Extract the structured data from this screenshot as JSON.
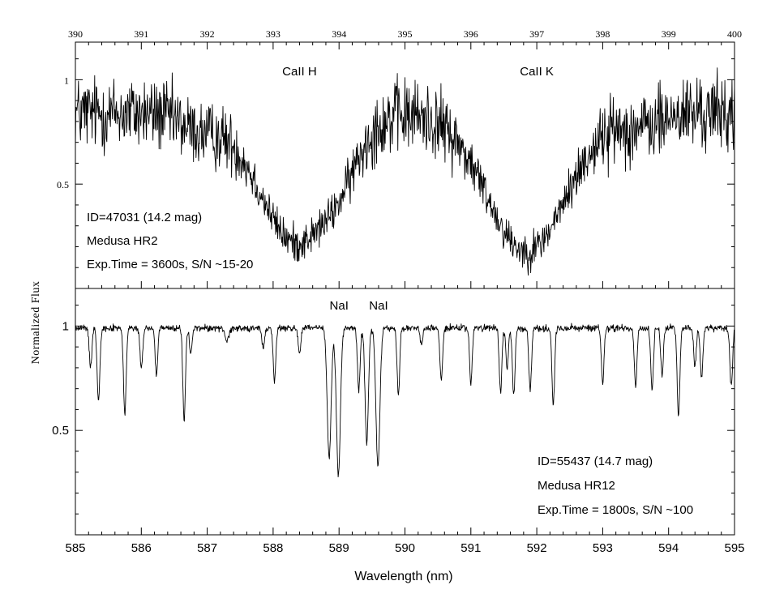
{
  "chart_data": {
    "type": "line",
    "ylabel": "Normalized Flux",
    "xlabel": "Wavelength (nm)",
    "panels": [
      {
        "name": "top",
        "series_name": "",
        "xaxis_position": "top",
        "xlim": [
          390,
          400
        ],
        "ylim": [
          0.0,
          1.18
        ],
        "xticks": [
          "390",
          "391",
          "392",
          "393",
          "394",
          "395",
          "396",
          "397",
          "398",
          "399",
          "400"
        ],
        "yticks": [
          {
            "value": 0.5,
            "label": "0.5"
          },
          {
            "value": 1,
            "label": "1"
          }
        ],
        "line_labels": [
          {
            "text": "CaII H",
            "x": 393.4,
            "y": 1.02
          },
          {
            "text": "CaII K",
            "x": 397.0,
            "y": 1.02
          }
        ],
        "annotations": [
          "ID=47031 (14.2 mag)",
          "Medusa HR2",
          "Exp.Time = 3600s, S/N ~15-20"
        ],
        "annotation_anchor": "bottom-left",
        "continuum": 0.84,
        "noise": 0.09,
        "absorption_lines": [
          {
            "center": 393.35,
            "depth": 0.62,
            "width": 0.55
          },
          {
            "center": 396.85,
            "depth": 0.66,
            "width": 0.6
          },
          {
            "center": 394.05,
            "depth": 0.12,
            "width": 0.25
          },
          {
            "center": 391.9,
            "depth": 0.08,
            "width": 0.3
          },
          {
            "center": 398.6,
            "depth": 0.06,
            "width": 0.3
          }
        ]
      },
      {
        "name": "bottom",
        "series_name": "",
        "xaxis_position": "bottom",
        "xlim": [
          585,
          595
        ],
        "ylim": [
          0.0,
          1.18
        ],
        "xticks": [
          "585",
          "586",
          "587",
          "588",
          "589",
          "590",
          "591",
          "592",
          "593",
          "594",
          "595"
        ],
        "yticks": [
          {
            "value": 0.5,
            "label": "0.5"
          },
          {
            "value": 1,
            "label": "1"
          }
        ],
        "line_labels": [
          {
            "text": "NaI",
            "x": 589.0,
            "y": 1.08
          },
          {
            "text": "NaI",
            "x": 589.6,
            "y": 1.08
          }
        ],
        "annotations": [
          "ID=55437 (14.7 mag)",
          "Medusa HR12",
          "Exp.Time = 1800s, S/N ~100"
        ],
        "annotation_anchor": "bottom-right",
        "continuum": 0.99,
        "noise": 0.008,
        "absorption_lines": [
          {
            "center": 585.23,
            "depth": 0.18,
            "width": 0.02
          },
          {
            "center": 585.35,
            "depth": 0.35,
            "width": 0.02
          },
          {
            "center": 585.75,
            "depth": 0.42,
            "width": 0.02
          },
          {
            "center": 586.0,
            "depth": 0.2,
            "width": 0.02
          },
          {
            "center": 586.23,
            "depth": 0.22,
            "width": 0.02
          },
          {
            "center": 586.65,
            "depth": 0.44,
            "width": 0.02
          },
          {
            "center": 586.75,
            "depth": 0.12,
            "width": 0.02
          },
          {
            "center": 587.3,
            "depth": 0.06,
            "width": 0.03
          },
          {
            "center": 587.85,
            "depth": 0.1,
            "width": 0.02
          },
          {
            "center": 588.02,
            "depth": 0.25,
            "width": 0.02
          },
          {
            "center": 588.4,
            "depth": 0.12,
            "width": 0.02
          },
          {
            "center": 588.85,
            "depth": 0.62,
            "width": 0.03
          },
          {
            "center": 588.99,
            "depth": 0.7,
            "width": 0.03
          },
          {
            "center": 589.3,
            "depth": 0.3,
            "width": 0.02
          },
          {
            "center": 589.42,
            "depth": 0.55,
            "width": 0.025
          },
          {
            "center": 589.59,
            "depth": 0.66,
            "width": 0.03
          },
          {
            "center": 589.9,
            "depth": 0.32,
            "width": 0.02
          },
          {
            "center": 590.25,
            "depth": 0.08,
            "width": 0.02
          },
          {
            "center": 590.55,
            "depth": 0.25,
            "width": 0.02
          },
          {
            "center": 591.0,
            "depth": 0.26,
            "width": 0.02
          },
          {
            "center": 591.45,
            "depth": 0.3,
            "width": 0.02
          },
          {
            "center": 591.55,
            "depth": 0.2,
            "width": 0.02
          },
          {
            "center": 591.65,
            "depth": 0.32,
            "width": 0.02
          },
          {
            "center": 591.9,
            "depth": 0.3,
            "width": 0.02
          },
          {
            "center": 592.25,
            "depth": 0.37,
            "width": 0.02
          },
          {
            "center": 593.0,
            "depth": 0.27,
            "width": 0.02
          },
          {
            "center": 593.5,
            "depth": 0.28,
            "width": 0.02
          },
          {
            "center": 593.75,
            "depth": 0.3,
            "width": 0.02
          },
          {
            "center": 593.9,
            "depth": 0.22,
            "width": 0.02
          },
          {
            "center": 594.15,
            "depth": 0.42,
            "width": 0.02
          },
          {
            "center": 594.4,
            "depth": 0.18,
            "width": 0.02
          },
          {
            "center": 594.5,
            "depth": 0.24,
            "width": 0.02
          },
          {
            "center": 594.95,
            "depth": 0.28,
            "width": 0.02
          }
        ]
      }
    ]
  }
}
